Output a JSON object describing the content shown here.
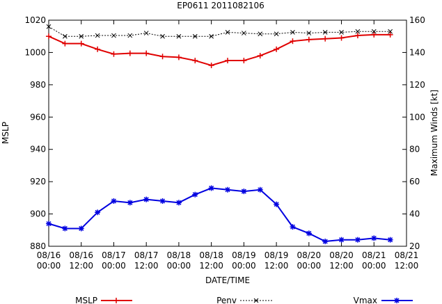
{
  "chart_data": {
    "type": "line",
    "title": "EP0611 2011082106",
    "xlabel": "DATE/TIME",
    "ylabel_left": "MSLP",
    "ylabel_right": "Maximum Winds [kt]",
    "y_left_range": [
      880,
      1020
    ],
    "y_left_ticks": [
      "880",
      "900",
      "920",
      "940",
      "960",
      "980",
      "1000",
      "1020"
    ],
    "y_right_range": [
      20,
      160
    ],
    "y_right_ticks": [
      "20",
      "40",
      "60",
      "80",
      "100",
      "120",
      "140",
      "160"
    ],
    "x_ticks": [
      {
        "date": "08/16",
        "time": "00:00"
      },
      {
        "date": "08/16",
        "time": "12:00"
      },
      {
        "date": "08/17",
        "time": "00:00"
      },
      {
        "date": "08/17",
        "time": "12:00"
      },
      {
        "date": "08/18",
        "time": "00:00"
      },
      {
        "date": "08/18",
        "time": "12:00"
      },
      {
        "date": "08/19",
        "time": "00:00"
      },
      {
        "date": "08/19",
        "time": "12:00"
      },
      {
        "date": "08/20",
        "time": "00:00"
      },
      {
        "date": "08/20",
        "time": "12:00"
      },
      {
        "date": "08/21",
        "time": "00:00"
      },
      {
        "date": "08/21",
        "time": "12:00"
      }
    ],
    "x": [
      "08/16 00:00",
      "08/16 06:00",
      "08/16 12:00",
      "08/16 18:00",
      "08/17 00:00",
      "08/17 06:00",
      "08/17 12:00",
      "08/17 18:00",
      "08/18 00:00",
      "08/18 06:00",
      "08/18 12:00",
      "08/18 18:00",
      "08/19 00:00",
      "08/19 06:00",
      "08/19 12:00",
      "08/19 18:00",
      "08/20 00:00",
      "08/20 06:00",
      "08/20 12:00",
      "08/20 18:00",
      "08/21 00:00",
      "08/21 06:00"
    ],
    "grid": false,
    "legend_position": "bottom",
    "series": [
      {
        "name": "MSLP",
        "axis": "left",
        "color": "#e00000",
        "marker": "plus",
        "values": [
          1010,
          1005.5,
          1005.5,
          1002,
          999,
          999.5,
          999.5,
          997.5,
          997,
          995,
          992,
          995,
          995,
          998,
          1002,
          1007,
          1008,
          1008.5,
          1009,
          1010.5,
          1011,
          1011
        ]
      },
      {
        "name": "Penv",
        "axis": "left",
        "color": "#000000",
        "marker": "x",
        "dashed": true,
        "values": [
          1016,
          1010,
          1010,
          1010.5,
          1010.5,
          1010.5,
          1012,
          1010,
          1010,
          1010,
          1010,
          1012.5,
          1012,
          1011.5,
          1011.5,
          1012.5,
          1012,
          1012.5,
          1012.5,
          1013,
          1013,
          1013
        ]
      },
      {
        "name": "Vmax",
        "axis": "right",
        "color": "#0000e0",
        "marker": "star",
        "values": [
          34,
          31,
          31,
          41,
          48,
          47,
          49,
          48,
          47,
          52,
          56,
          55,
          54,
          55,
          46,
          32,
          28,
          23,
          24,
          24,
          25,
          24
        ]
      }
    ]
  }
}
